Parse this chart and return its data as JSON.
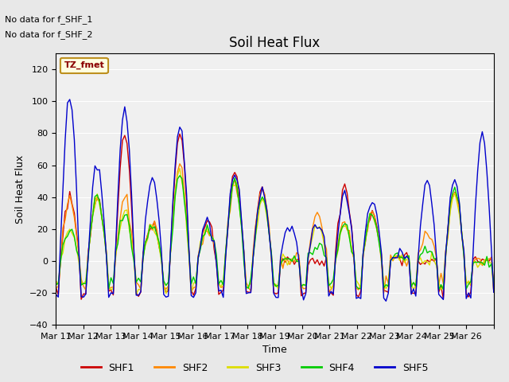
{
  "title": "Soil Heat Flux",
  "ylabel": "Soil Heat Flux",
  "xlabel": "Time",
  "annotation_text1": "No data for f_SHF_1",
  "annotation_text2": "No data for f_SHF_2",
  "legend_label": "TZ_fmet",
  "ylim": [
    -40,
    130
  ],
  "yticks": [
    -40,
    -20,
    0,
    20,
    40,
    60,
    80,
    100,
    120
  ],
  "x_tick_positions": [
    0,
    1,
    2,
    3,
    4,
    5,
    6,
    7,
    8,
    9,
    10,
    11,
    12,
    13,
    14,
    15,
    16
  ],
  "x_labels": [
    "Mar 11",
    "Mar 12",
    "Mar 13",
    "Mar 14",
    "Mar 15",
    "Mar 16",
    "Mar 17",
    "Mar 18",
    "Mar 19",
    "Mar 20",
    "Mar 21",
    "Mar 22",
    "Mar 23",
    "Mar 24",
    "Mar 25",
    "Mar 26",
    ""
  ],
  "colors": {
    "SHF1": "#cc0000",
    "SHF2": "#ff8800",
    "SHF3": "#dddd00",
    "SHF4": "#00cc00",
    "SHF5": "#0000cc"
  },
  "line_width": 1.0,
  "bg_color": "#e8e8e8",
  "plot_bg": "#f0f0f0",
  "n_days": 16,
  "pts_per_day": 12,
  "shf1_amps": [
    40,
    40,
    80,
    23,
    80,
    23,
    55,
    44,
    0,
    0,
    45,
    30,
    2,
    0,
    43,
    0
  ],
  "shf2_amps": [
    40,
    40,
    40,
    23,
    60,
    20,
    50,
    44,
    0,
    31,
    23,
    30,
    2,
    18,
    43,
    0
  ],
  "shf3_amps": [
    20,
    40,
    30,
    23,
    55,
    20,
    50,
    40,
    0,
    22,
    22,
    30,
    2,
    0,
    43,
    0
  ],
  "shf4_amps": [
    20,
    40,
    30,
    23,
    55,
    20,
    50,
    40,
    0,
    10,
    22,
    30,
    2,
    8,
    43,
    0
  ],
  "shf5_amps": [
    103,
    60,
    95,
    52,
    85,
    25,
    55,
    44,
    22,
    25,
    45,
    35,
    5,
    50,
    50,
    80
  ],
  "shf1_night": -20,
  "shf2_night": -16,
  "shf3_night": -16,
  "shf4_night": -15,
  "shf5_night": -22
}
